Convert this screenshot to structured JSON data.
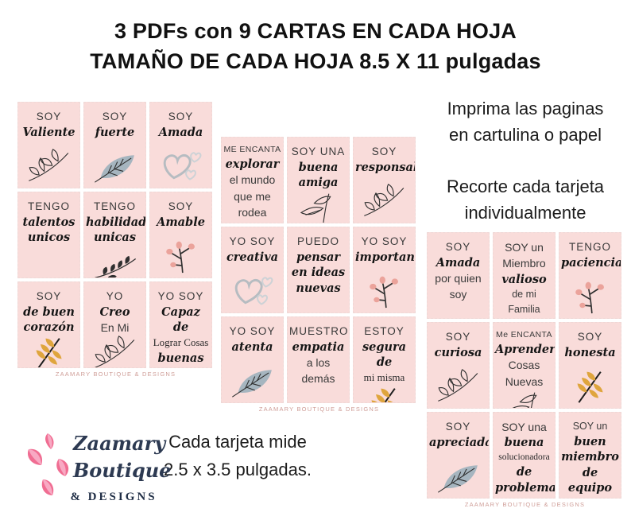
{
  "title": {
    "line1": "3 PDFs con 9 CARTAS EN CADA HOJA",
    "line2": "TAMAÑO DE CADA HOJA 8.5 X 11 pulgadas"
  },
  "instructions": {
    "print": [
      "Imprima las paginas",
      "en cartulina o papel"
    ],
    "cut": [
      "Recorte cada tarjeta",
      "individualmente"
    ]
  },
  "size_note": [
    "Cada tarjeta mide",
    "2.5 x 3.5 pulgadas."
  ],
  "watermark": "ZAAMARY BOUTIQUE & DESIGNS",
  "logo": {
    "name_line1": "Zaamary",
    "name_line2": "Boutique",
    "sub": "& DESIGNS"
  },
  "colors": {
    "card_bg": "#f9dcda",
    "watermark": "#cf9e98",
    "ink": "#2f2f2f",
    "slate": "#a6b5bf",
    "berry": "#eba39b",
    "yellow": "#dfa53d",
    "heart_gray": "#b6bcc1",
    "heart_gray_light": "#cdd2d6",
    "logo_pink": "#f06d92",
    "logo_pink_light": "#f8a9c3",
    "logo_navy": "#2d3a52",
    "title_text": "#111111"
  },
  "grids": [
    {
      "cards": [
        {
          "lines": [
            {
              "t": "SOY",
              "s": "caps"
            },
            {
              "t": "Valiente",
              "s": "script"
            }
          ],
          "icon": "branch"
        },
        {
          "lines": [
            {
              "t": "SOY",
              "s": "caps"
            },
            {
              "t": "fuerte",
              "s": "script"
            }
          ],
          "icon": "leaf-slate"
        },
        {
          "lines": [
            {
              "t": "SOY",
              "s": "caps"
            },
            {
              "t": "Amada",
              "s": "script"
            }
          ],
          "icon": "hearts"
        },
        {
          "lines": [
            {
              "t": "TENGO",
              "s": "caps"
            },
            {
              "t": "talentos",
              "s": "script"
            },
            {
              "t": "unicos",
              "s": "script"
            }
          ],
          "icon": null
        },
        {
          "lines": [
            {
              "t": "TENGO",
              "s": "caps"
            },
            {
              "t": "habilidades",
              "s": "script"
            },
            {
              "t": "unicas",
              "s": "script"
            }
          ],
          "icon": "sprig"
        },
        {
          "lines": [
            {
              "t": "SOY",
              "s": "caps"
            },
            {
              "t": "Amable",
              "s": "script"
            }
          ],
          "icon": "berries"
        },
        {
          "lines": [
            {
              "t": "SOY",
              "s": "caps"
            },
            {
              "t": "de buen",
              "s": "script"
            },
            {
              "t": "corazón",
              "s": "script"
            }
          ],
          "icon": "yellow-leaf"
        },
        {
          "lines": [
            {
              "t": "YO",
              "s": "caps"
            },
            {
              "t": "Creo",
              "s": "script"
            },
            {
              "t": "En Mi",
              "s": "sans-lg"
            }
          ],
          "icon": "branch"
        },
        {
          "lines": [
            {
              "t": "YO SOY",
              "s": "caps"
            },
            {
              "t": "Capaz de",
              "s": "script"
            },
            {
              "t": "Lograr Cosas",
              "s": "serif"
            },
            {
              "t": "buenas",
              "s": "script"
            }
          ],
          "icon": null
        }
      ]
    },
    {
      "cards": [
        {
          "lines": [
            {
              "t": "ME ENCANTA",
              "s": "caps-sm"
            },
            {
              "t": "explorar",
              "s": "script"
            },
            {
              "t": "el mundo",
              "s": "sans-lg"
            },
            {
              "t": "que me",
              "s": "sans-lg"
            },
            {
              "t": "rodea",
              "s": "sans-lg"
            }
          ],
          "icon": null
        },
        {
          "lines": [
            {
              "t": "SOY UNA",
              "s": "caps"
            },
            {
              "t": "buena",
              "s": "script"
            },
            {
              "t": "amiga",
              "s": "script"
            }
          ],
          "icon": "leaf-outline"
        },
        {
          "lines": [
            {
              "t": "SOY",
              "s": "caps"
            },
            {
              "t": "responsable",
              "s": "script"
            }
          ],
          "icon": "branch"
        },
        {
          "lines": [
            {
              "t": "YO SOY",
              "s": "caps"
            },
            {
              "t": "creativa",
              "s": "script"
            }
          ],
          "icon": "hearts"
        },
        {
          "lines": [
            {
              "t": "PUEDO",
              "s": "caps"
            },
            {
              "t": "pensar",
              "s": "script"
            },
            {
              "t": "en ideas",
              "s": "script"
            },
            {
              "t": "nuevas",
              "s": "script"
            }
          ],
          "icon": null
        },
        {
          "lines": [
            {
              "t": "YO SOY",
              "s": "caps"
            },
            {
              "t": "importante",
              "s": "script"
            }
          ],
          "icon": "berries"
        },
        {
          "lines": [
            {
              "t": "YO SOY",
              "s": "caps"
            },
            {
              "t": "atenta",
              "s": "script"
            }
          ],
          "icon": "leaf-slate"
        },
        {
          "lines": [
            {
              "t": "MUESTRO",
              "s": "caps"
            },
            {
              "t": "empatia",
              "s": "script"
            },
            {
              "t": "a los demás",
              "s": "sans-lg"
            }
          ],
          "icon": "leaves-cluster"
        },
        {
          "lines": [
            {
              "t": "ESTOY",
              "s": "caps"
            },
            {
              "t": "segura de",
              "s": "script"
            },
            {
              "t": "mi misma",
              "s": "serif"
            }
          ],
          "icon": "yellow-leaf"
        }
      ]
    },
    {
      "cards": [
        {
          "lines": [
            {
              "t": "SOY",
              "s": "caps"
            },
            {
              "t": "Amada",
              "s": "script"
            },
            {
              "t": "por quien",
              "s": "sans-lg"
            },
            {
              "t": "soy",
              "s": "sans-lg"
            }
          ],
          "icon": null
        },
        {
          "lines": [
            {
              "t": "SOY un",
              "s": "sans-lg"
            },
            {
              "t": "Miembro",
              "s": "sans-lg"
            },
            {
              "t": "valioso",
              "s": "script"
            },
            {
              "t": "de mi",
              "s": "sans"
            },
            {
              "t": "Familia",
              "s": "sans"
            }
          ],
          "icon": null
        },
        {
          "lines": [
            {
              "t": "TENGO",
              "s": "caps"
            },
            {
              "t": "paciencia",
              "s": "script"
            }
          ],
          "icon": "berries"
        },
        {
          "lines": [
            {
              "t": "SOY",
              "s": "caps"
            },
            {
              "t": "curiosa",
              "s": "script"
            }
          ],
          "icon": "branch"
        },
        {
          "lines": [
            {
              "t": "Me ENCANTA",
              "s": "caps-sm"
            },
            {
              "t": "Aprender",
              "s": "script"
            },
            {
              "t": "Cosas",
              "s": "sans-lg"
            },
            {
              "t": "Nuevas",
              "s": "sans-lg"
            }
          ],
          "icon": "leaf-outline"
        },
        {
          "lines": [
            {
              "t": "SOY",
              "s": "caps"
            },
            {
              "t": "honesta",
              "s": "script"
            }
          ],
          "icon": "yellow-leaf"
        },
        {
          "lines": [
            {
              "t": "SOY",
              "s": "caps"
            },
            {
              "t": "apreciada",
              "s": "script"
            }
          ],
          "icon": "leaf-slate"
        },
        {
          "lines": [
            {
              "t": "SOY una",
              "s": "sans-lg"
            },
            {
              "t": "buena",
              "s": "script"
            },
            {
              "t": "solucionadora",
              "s": "serif-sm"
            },
            {
              "t": "de",
              "s": "script"
            },
            {
              "t": "problemas",
              "s": "script"
            }
          ],
          "icon": null
        },
        {
          "lines": [
            {
              "t": "SOY un",
              "s": "sans"
            },
            {
              "t": "buen",
              "s": "script"
            },
            {
              "t": "miembro de",
              "s": "script"
            },
            {
              "t": "equipo",
              "s": "script"
            }
          ],
          "icon": "branch-dots"
        }
      ]
    }
  ]
}
